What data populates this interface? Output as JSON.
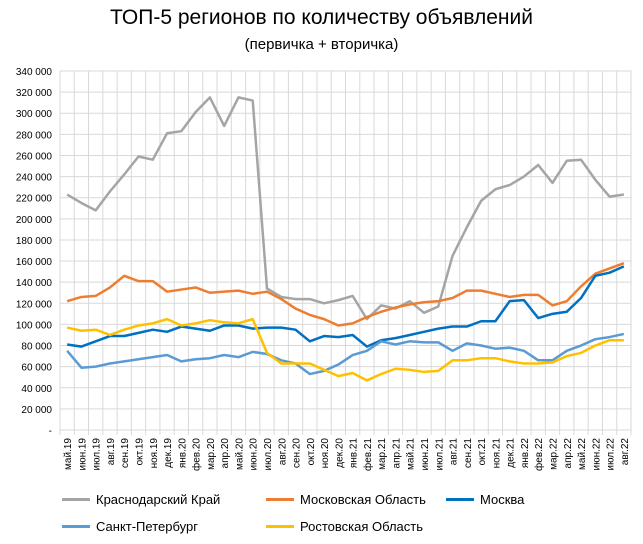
{
  "chart_data": {
    "type": "line",
    "title": "ТОП-5 регионов по количеству объявлений",
    "subtitle": "(первичка + вторичка)",
    "xlabel": "",
    "ylabel": "",
    "ylim": [
      0,
      340000
    ],
    "yticks": [
      "-",
      "20 000",
      "40 000",
      "60 000",
      "80 000",
      "100 000",
      "120 000",
      "140 000",
      "160 000",
      "180 000",
      "200 000",
      "220 000",
      "240 000",
      "260 000",
      "280 000",
      "300 000",
      "320 000",
      "340 000"
    ],
    "grid": true,
    "legend_position": "bottom",
    "categories": [
      "май.19",
      "июн.19",
      "июл.19",
      "авг.19",
      "сен.19",
      "окт.19",
      "ноя.19",
      "дек.19",
      "янв.20",
      "фев.20",
      "мар.20",
      "апр.20",
      "май.20",
      "июн.20",
      "июл.20",
      "авг.20",
      "сен.20",
      "окт.20",
      "ноя.20",
      "дек.20",
      "янв.21",
      "фев.21",
      "мар.21",
      "апр.21",
      "май.21",
      "июн.21",
      "июл.21",
      "авг.21",
      "сен.21",
      "окт.21",
      "ноя.21",
      "дек.21",
      "янв.22",
      "фев.22",
      "мар.22",
      "апр.22",
      "май.22",
      "июн.22",
      "июл.22",
      "авг.22"
    ],
    "series": [
      {
        "name": "Краснодарский Край",
        "color": "#a5a5a5",
        "values": [
          223000,
          215000,
          208000,
          226000,
          242000,
          259000,
          256000,
          281000,
          283000,
          301000,
          315000,
          288000,
          315000,
          312000,
          134000,
          126000,
          124000,
          124000,
          120000,
          123000,
          127000,
          105000,
          118000,
          115000,
          122000,
          111000,
          117000,
          165000,
          192000,
          217000,
          228000,
          232000,
          240000,
          251000,
          234000,
          255000,
          256000,
          237000,
          221000,
          223000
        ]
      },
      {
        "name": "Московская Область",
        "color": "#ed7d31",
        "values": [
          122000,
          126000,
          127000,
          135000,
          146000,
          141000,
          141000,
          131000,
          133000,
          135000,
          130000,
          131000,
          132000,
          129000,
          131000,
          124000,
          115000,
          109000,
          105000,
          99000,
          101000,
          107000,
          112000,
          116000,
          119000,
          121000,
          122000,
          125000,
          132000,
          132000,
          129000,
          126000,
          128000,
          128000,
          118000,
          122000,
          136000,
          148000,
          153000,
          158000
        ]
      },
      {
        "name": "Москва",
        "color": "#0070c0",
        "values": [
          81000,
          79000,
          84000,
          89000,
          89000,
          92000,
          95000,
          93000,
          98000,
          96000,
          94000,
          99000,
          99000,
          96000,
          97000,
          97000,
          95000,
          84000,
          89000,
          88000,
          90000,
          79000,
          85000,
          87000,
          90000,
          93000,
          96000,
          98000,
          98000,
          103000,
          103000,
          122000,
          123000,
          106000,
          110000,
          112000,
          125000,
          146000,
          149000,
          155000
        ]
      },
      {
        "name": "Санкт-Петербург",
        "color": "#5b9bd5",
        "values": [
          75000,
          59000,
          60000,
          63000,
          65000,
          67000,
          69000,
          71000,
          65000,
          67000,
          68000,
          71000,
          69000,
          74000,
          72000,
          66000,
          63000,
          53000,
          56000,
          62000,
          71000,
          75000,
          84000,
          81000,
          84000,
          83000,
          83000,
          75000,
          82000,
          80000,
          77000,
          78000,
          75000,
          66000,
          66000,
          75000,
          80000,
          86000,
          88000,
          91000
        ]
      },
      {
        "name": "Ростовская Область",
        "color": "#ffc000",
        "values": [
          97000,
          94000,
          95000,
          90000,
          95000,
          99000,
          101000,
          105000,
          99000,
          101000,
          104000,
          102000,
          101000,
          105000,
          73000,
          63000,
          63000,
          63000,
          57000,
          51000,
          54000,
          47000,
          53000,
          58000,
          57000,
          55000,
          56000,
          66000,
          66000,
          68000,
          68000,
          65000,
          63000,
          63000,
          64000,
          70000,
          73000,
          80000,
          85000,
          85000
        ]
      }
    ]
  }
}
